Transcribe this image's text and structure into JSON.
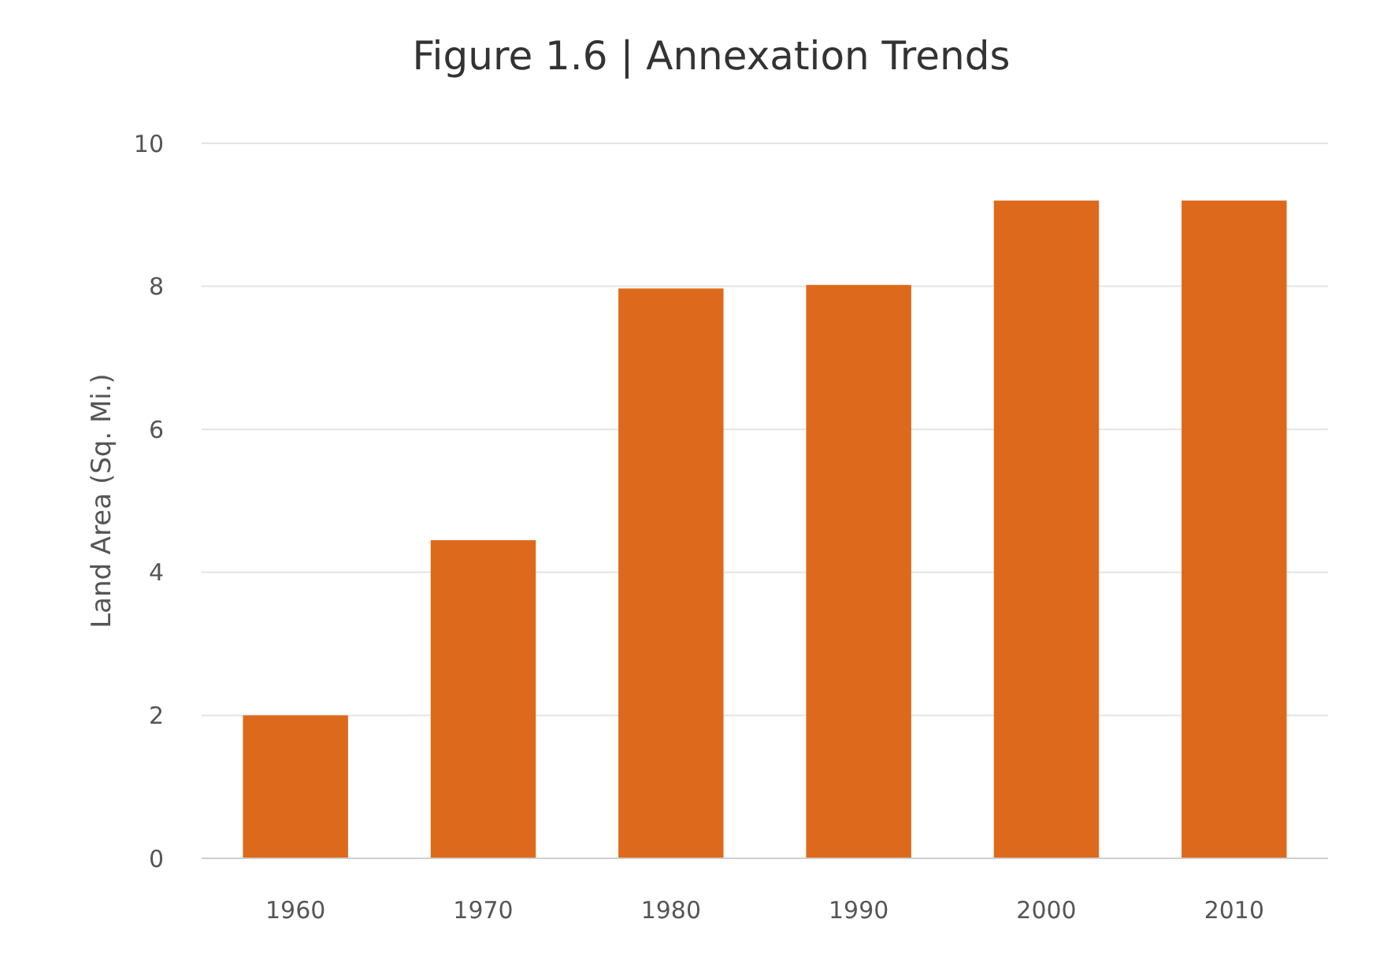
{
  "chart_data": {
    "type": "bar",
    "title": "Figure 1.6 | Annexation Trends",
    "ylabel": "Land Area (Sq. Mi.)",
    "categories": [
      "1960",
      "1970",
      "1980",
      "1990",
      "2000",
      "2010"
    ],
    "values": [
      2.0,
      4.45,
      7.97,
      8.02,
      9.2,
      9.2
    ],
    "color": "#dd6a1c",
    "ylim": [
      0,
      10
    ],
    "yticks": [
      0,
      2,
      4,
      6,
      8,
      10
    ],
    "grid": "y"
  }
}
